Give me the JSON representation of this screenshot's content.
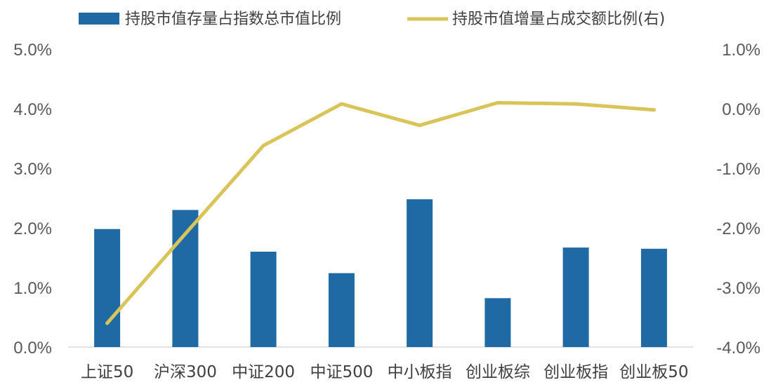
{
  "chart_data": {
    "type": "bar",
    "categories": [
      "上证50",
      "沪深300",
      "中证200",
      "中证500",
      "中小板指",
      "创业板综",
      "创业板指",
      "创业板50"
    ],
    "series": [
      {
        "name": "持股市值存量占指数总市值比例",
        "type": "bar",
        "axis": "left",
        "color": "#1f6aa5",
        "values": [
          1.98,
          2.3,
          1.6,
          1.24,
          2.48,
          0.82,
          1.67,
          1.65
        ]
      },
      {
        "name": "持股市值增量占成交额比例(右)",
        "type": "line",
        "axis": "right",
        "color": "#d9c45a",
        "values": [
          -3.6,
          -2.1,
          -0.62,
          0.08,
          -0.28,
          0.1,
          0.08,
          -0.02
        ]
      }
    ],
    "y_left": {
      "min": 0,
      "max": 5,
      "step": 1,
      "tick_labels": [
        "0.0%",
        "1.0%",
        "2.0%",
        "3.0%",
        "4.0%",
        "5.0%"
      ]
    },
    "y_right": {
      "min": -4,
      "max": 1,
      "step": 1,
      "tick_labels": [
        "-4.0%",
        "-3.0%",
        "-2.0%",
        "-1.0%",
        "0.0%",
        "1.0%"
      ]
    },
    "grid": false,
    "legend_position": "top"
  }
}
